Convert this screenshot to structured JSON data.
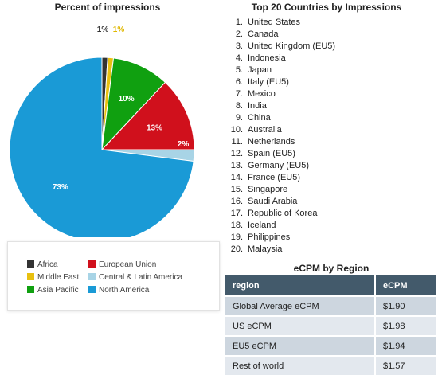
{
  "pie": {
    "title": "Percent of impressions"
  },
  "chart_data": [
    {
      "type": "pie",
      "title": "Percent of impressions",
      "slices": [
        {
          "name": "Africa",
          "value": 1,
          "label": "1%",
          "color": "#333333",
          "label_color": "#333333"
        },
        {
          "name": "Middle East",
          "value": 1,
          "label": "1%",
          "color": "#e8c010",
          "label_color": "#e0b800"
        },
        {
          "name": "Asia Pacific",
          "value": 10,
          "label": "10%",
          "color": "#10a010",
          "label_color": "#ffffff"
        },
        {
          "name": "European Union",
          "value": 13,
          "label": "13%",
          "color": "#d0101c",
          "label_color": "#ffffff"
        },
        {
          "name": "Central & Latin America",
          "value": 2,
          "label": "2%",
          "color": "#a8d4e6",
          "label_color": "#ffffff"
        },
        {
          "name": "North America",
          "value": 73,
          "label": "73%",
          "color": "#1a9ad6",
          "label_color": "#ffffff"
        }
      ],
      "legend": {
        "placement": "bottom",
        "items": [
          {
            "label": "Africa",
            "color": "#333333"
          },
          {
            "label": "European Union",
            "color": "#d0101c"
          },
          {
            "label": "Middle East",
            "color": "#e8c010"
          },
          {
            "label": "Central & Latin America",
            "color": "#a8d4e6"
          },
          {
            "label": "Asia Pacific",
            "color": "#10a010"
          },
          {
            "label": "North America",
            "color": "#1a9ad6"
          }
        ]
      }
    },
    {
      "type": "table",
      "title": "eCPM by Region",
      "columns": [
        "region",
        "eCPM"
      ],
      "rows": [
        [
          "Global Average eCPM",
          "$1.90"
        ],
        [
          "US eCPM",
          "$1.98"
        ],
        [
          "EU5 eCPM",
          "$1.94"
        ],
        [
          "Rest of world",
          "$1.57"
        ]
      ]
    }
  ],
  "countries": {
    "title": "Top 20 Countries by Impressions",
    "items": [
      {
        "num": "1.",
        "name": "United States"
      },
      {
        "num": "2.",
        "name": "Canada"
      },
      {
        "num": "3.",
        "name": "United Kingdom (EU5)"
      },
      {
        "num": "4.",
        "name": "Indonesia"
      },
      {
        "num": "5.",
        "name": "Japan"
      },
      {
        "num": "6.",
        "name": "Italy (EU5)"
      },
      {
        "num": "7.",
        "name": "Mexico"
      },
      {
        "num": "8.",
        "name": "India"
      },
      {
        "num": "9.",
        "name": "China"
      },
      {
        "num": "10.",
        "name": "Australia"
      },
      {
        "num": "11.",
        "name": "Netherlands"
      },
      {
        "num": "12.",
        "name": "Spain (EU5)"
      },
      {
        "num": "13.",
        "name": "Germany (EU5)"
      },
      {
        "num": "14.",
        "name": "France (EU5)"
      },
      {
        "num": "15.",
        "name": "Singapore"
      },
      {
        "num": "16.",
        "name": "Saudi Arabia"
      },
      {
        "num": "17.",
        "name": "Republic of Korea"
      },
      {
        "num": "18.",
        "name": "Iceland"
      },
      {
        "num": "19.",
        "name": "Philippines"
      },
      {
        "num": "20.",
        "name": "Malaysia"
      }
    ]
  },
  "ecpm": {
    "title": "eCPM by Region",
    "header": {
      "region": "region",
      "ecpm": "eCPM"
    },
    "rows": [
      {
        "region": "Global Average eCPM",
        "ecpm": "$1.90"
      },
      {
        "region": "US eCPM",
        "ecpm": "$1.98"
      },
      {
        "region": "EU5 eCPM",
        "ecpm": "$1.94"
      },
      {
        "region": "Rest of world",
        "ecpm": "$1.57"
      }
    ]
  }
}
